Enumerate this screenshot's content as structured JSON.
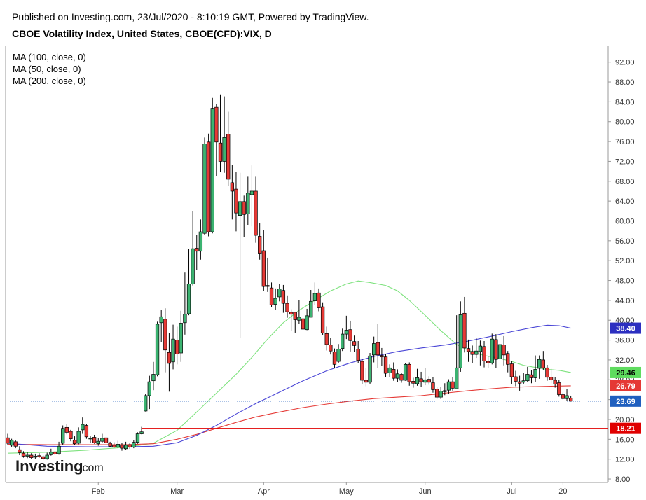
{
  "header": {
    "published": "Published on Investing.com, 23/Jul/2020 - 8:10:19 GMT, Powered by TradingView.",
    "symbol": "CBOE Volatility Index, United States, CBOE(CFD):VIX, D"
  },
  "logo": {
    "main": "Investing",
    "suffix": ".com"
  },
  "colors": {
    "up": "#3cb371",
    "down": "#e53935",
    "ma50": "#7ee27e",
    "ma100": "#e53935",
    "ma200": "#4a46d6",
    "support": "#e00000",
    "current": "#1f5fbf"
  },
  "chart_data": {
    "type": "candlestick",
    "title": "CBOE Volatility Index, United States, CBOE(CFD):VIX, D",
    "ylim": [
      8,
      93
    ],
    "y_ticks": [
      "8.00",
      "12.00",
      "16.00",
      "20.00",
      "24.00",
      "28.00",
      "32.00",
      "36.00",
      "40.00",
      "44.00",
      "48.00",
      "52.00",
      "56.00",
      "60.00",
      "64.00",
      "68.00",
      "72.00",
      "76.00",
      "80.00",
      "84.00",
      "88.00",
      "92.00"
    ],
    "x_labels": [
      {
        "label": "Feb",
        "day": 23
      },
      {
        "label": "Mar",
        "day": 43
      },
      {
        "label": "Apr",
        "day": 65
      },
      {
        "label": "May",
        "day": 86
      },
      {
        "label": "Jun",
        "day": 106
      },
      {
        "label": "Jul",
        "day": 128
      },
      {
        "label": "20",
        "day": 141
      }
    ],
    "legend": [
      "MA (100, close, 0)",
      "MA (50, close, 0)",
      "MA (200, close, 0)"
    ],
    "candles": [
      [
        16.3,
        15.2,
        17.1,
        14.9
      ],
      [
        14.8,
        15.8,
        16.1,
        14.5
      ],
      [
        15.5,
        14.6,
        15.9,
        14.2
      ],
      [
        13.9,
        13.3,
        14.6,
        12.8
      ],
      [
        13.2,
        12.6,
        13.6,
        12.3
      ],
      [
        12.6,
        12.8,
        13.4,
        12.2
      ],
      [
        12.8,
        12.3,
        13.2,
        12.0
      ],
      [
        12.4,
        12.6,
        13.1,
        12.1
      ],
      [
        12.7,
        12.5,
        13.2,
        12.3
      ],
      [
        12.5,
        12.1,
        12.8,
        11.8
      ],
      [
        12.1,
        12.8,
        13.3,
        11.9
      ],
      [
        12.9,
        13.4,
        14.1,
        12.7
      ],
      [
        13.4,
        13.0,
        13.6,
        12.8
      ],
      [
        13.1,
        14.6,
        15.5,
        12.9
      ],
      [
        15.2,
        18.2,
        18.8,
        14.9
      ],
      [
        18.4,
        17.4,
        19.0,
        17.0
      ],
      [
        17.6,
        16.1,
        17.9,
        15.6
      ],
      [
        15.8,
        15.1,
        16.6,
        14.9
      ],
      [
        15.2,
        17.6,
        18.4,
        15.0
      ],
      [
        17.9,
        19.0,
        20.4,
        17.1
      ],
      [
        18.8,
        16.5,
        19.1,
        16.1
      ],
      [
        16.2,
        16.2,
        16.6,
        15.3
      ],
      [
        16.4,
        15.3,
        16.9,
        15.1
      ],
      [
        15.1,
        15.6,
        16.3,
        14.7
      ],
      [
        15.6,
        16.2,
        17.1,
        15.2
      ],
      [
        16.3,
        15.3,
        16.7,
        14.9
      ],
      [
        15.2,
        14.6,
        15.5,
        14.4
      ],
      [
        14.8,
        14.4,
        15.4,
        14.3
      ],
      [
        14.4,
        15.0,
        15.7,
        14.2
      ],
      [
        14.8,
        14.2,
        15.2,
        13.7
      ],
      [
        14.1,
        14.8,
        15.5,
        13.9
      ],
      [
        14.9,
        14.4,
        15.3,
        14.1
      ],
      [
        14.4,
        15.4,
        15.9,
        14.2
      ],
      [
        15.4,
        17.1,
        17.4,
        15.1
      ],
      [
        17.1,
        17.5,
        18.5,
        17.0
      ],
      [
        21.7,
        24.8,
        25.2,
        21.6
      ],
      [
        24.8,
        27.6,
        28.8,
        22.1
      ],
      [
        27.8,
        29.1,
        31.6,
        25.9
      ],
      [
        29.0,
        39.2,
        39.7,
        28.7
      ],
      [
        39.5,
        40.7,
        42.1,
        35.6
      ],
      [
        40.2,
        34.0,
        42.4,
        29.5
      ],
      [
        33.5,
        31.3,
        37.4,
        25.6
      ],
      [
        31.6,
        36.2,
        39.1,
        30.1
      ],
      [
        36.0,
        33.2,
        38.7,
        31.1
      ],
      [
        33.4,
        39.4,
        41.9,
        31.6
      ],
      [
        39.5,
        41.2,
        49.6,
        37.1
      ],
      [
        41.3,
        47.3,
        54.3,
        41.0
      ],
      [
        47.3,
        54.4,
        62.0,
        47.0
      ],
      [
        54.5,
        53.9,
        57.2,
        50.1
      ],
      [
        53.9,
        57.8,
        60.3,
        52.2
      ],
      [
        57.5,
        75.5,
        76.8,
        57.1
      ],
      [
        75.9,
        57.8,
        77.6,
        56.9
      ],
      [
        57.8,
        82.7,
        84.8,
        57.5
      ],
      [
        82.9,
        75.9,
        83.6,
        69.1
      ],
      [
        75.7,
        72.0,
        85.5,
        69.8
      ],
      [
        72.0,
        76.8,
        85.1,
        69.7
      ],
      [
        77.5,
        68.4,
        82.0,
        67.0
      ],
      [
        67.7,
        66.0,
        71.3,
        60.3
      ],
      [
        66.4,
        61.6,
        69.8,
        57.9
      ],
      [
        61.1,
        63.9,
        69.7,
        36.5
      ],
      [
        63.9,
        61.3,
        65.1,
        56.8
      ],
      [
        61.4,
        65.6,
        68.9,
        59.1
      ],
      [
        65.3,
        66.0,
        71.2,
        58.9
      ],
      [
        66.0,
        57.1,
        68.9,
        55.6
      ],
      [
        56.9,
        53.5,
        59.6,
        52.2
      ],
      [
        54.0,
        46.8,
        58.1,
        45.9
      ],
      [
        47.0,
        46.8,
        52.6,
        45.7
      ],
      [
        46.5,
        43.1,
        47.6,
        42.6
      ],
      [
        43.2,
        44.4,
        46.4,
        42.1
      ],
      [
        44.7,
        46.3,
        47.3,
        43.8
      ],
      [
        46.0,
        43.4,
        47.1,
        41.5
      ],
      [
        43.4,
        41.7,
        45.0,
        40.5
      ],
      [
        41.6,
        41.2,
        42.2,
        37.8
      ],
      [
        41.6,
        40.1,
        41.7,
        37.5
      ],
      [
        40.0,
        40.6,
        44.0,
        39.3
      ],
      [
        40.3,
        38.2,
        41.1,
        36.9
      ],
      [
        38.1,
        40.9,
        42.3,
        38.0
      ],
      [
        40.6,
        43.8,
        46.1,
        40.7
      ],
      [
        43.9,
        45.4,
        47.6,
        43.0
      ],
      [
        45.5,
        42.5,
        46.4,
        41.8
      ],
      [
        42.7,
        37.4,
        43.6,
        37.0
      ],
      [
        37.3,
        35.1,
        38.7,
        33.9
      ],
      [
        35.0,
        33.8,
        36.4,
        33.1
      ],
      [
        33.6,
        31.1,
        34.3,
        30.3
      ],
      [
        31.7,
        34.2,
        35.2,
        31.4
      ],
      [
        34.3,
        37.2,
        38.3,
        33.8
      ],
      [
        37.2,
        38.0,
        40.9,
        36.2
      ],
      [
        38.1,
        35.9,
        39.9,
        33.7
      ],
      [
        35.7,
        34.9,
        36.9,
        33.6
      ],
      [
        34.2,
        31.9,
        35.8,
        31.4
      ],
      [
        31.7,
        27.9,
        32.2,
        27.2
      ],
      [
        27.9,
        27.5,
        30.4,
        26.7
      ],
      [
        27.5,
        32.8,
        33.4,
        27.2
      ],
      [
        33.0,
        35.3,
        36.7,
        31.5
      ],
      [
        35.5,
        33.0,
        39.2,
        30.4
      ],
      [
        32.9,
        32.6,
        34.4,
        30.8
      ],
      [
        32.6,
        29.3,
        33.2,
        28.5
      ],
      [
        29.4,
        30.4,
        31.1,
        28.6
      ],
      [
        30.1,
        28.3,
        31.5,
        27.8
      ],
      [
        28.3,
        29.2,
        30.1,
        27.6
      ],
      [
        29.1,
        27.9,
        29.4,
        27.4
      ],
      [
        27.9,
        31.1,
        31.4,
        27.8
      ],
      [
        31.1,
        27.6,
        31.5,
        26.8
      ],
      [
        27.7,
        27.3,
        28.4,
        26.4
      ],
      [
        27.2,
        28.4,
        30.2,
        26.8
      ],
      [
        28.2,
        27.6,
        29.6,
        26.6
      ],
      [
        27.5,
        28.0,
        30.4,
        26.9
      ],
      [
        28.1,
        27.5,
        28.7,
        27.0
      ],
      [
        27.4,
        26.0,
        28.6,
        25.4
      ],
      [
        26.1,
        24.5,
        26.6,
        24.1
      ],
      [
        24.5,
        25.7,
        26.6,
        24.1
      ],
      [
        25.6,
        25.8,
        27.3,
        24.9
      ],
      [
        25.9,
        27.6,
        28.1,
        25.1
      ],
      [
        27.6,
        26.3,
        28.5,
        25.8
      ],
      [
        26.2,
        30.4,
        41.0,
        29.9
      ],
      [
        30.4,
        41.1,
        43.8,
        29.6
      ],
      [
        41.4,
        34.4,
        44.7,
        33.5
      ],
      [
        34.3,
        33.7,
        36.1,
        31.6
      ],
      [
        33.7,
        33.1,
        34.9,
        31.3
      ],
      [
        33.1,
        33.8,
        36.5,
        32.4
      ],
      [
        33.7,
        34.8,
        35.9,
        30.9
      ],
      [
        34.7,
        31.8,
        35.8,
        30.5
      ],
      [
        31.7,
        31.4,
        32.8,
        30.4
      ],
      [
        31.4,
        36.2,
        37.3,
        31.1
      ],
      [
        36.1,
        32.1,
        37.2,
        30.3
      ],
      [
        32.2,
        35.1,
        36.6,
        31.8
      ],
      [
        35.0,
        33.0,
        36.8,
        30.9
      ],
      [
        33.3,
        31.1,
        33.8,
        29.5
      ],
      [
        31.2,
        28.6,
        31.8,
        27.2
      ],
      [
        28.6,
        27.7,
        29.8,
        26.7
      ],
      [
        27.6,
        27.3,
        28.8,
        25.8
      ],
      [
        27.5,
        27.8,
        29.4,
        27.2
      ],
      [
        27.8,
        29.1,
        30.6,
        27.5
      ],
      [
        29.0,
        28.4,
        30.0,
        27.3
      ],
      [
        28.4,
        30.1,
        32.9,
        27.5
      ],
      [
        30.3,
        32.1,
        32.9,
        28.2
      ],
      [
        32.0,
        30.4,
        33.8,
        29.9
      ],
      [
        30.4,
        28.5,
        31.0,
        27.8
      ],
      [
        28.5,
        28.0,
        30.2,
        27.3
      ],
      [
        27.9,
        27.1,
        28.6,
        26.4
      ],
      [
        27.4,
        25.0,
        28.0,
        24.6
      ],
      [
        25.0,
        24.2,
        25.4,
        24.0
      ],
      [
        24.2,
        24.8,
        26.1,
        23.7
      ],
      [
        24.3,
        23.7,
        24.8,
        23.6
      ]
    ],
    "ma50": [
      [
        0,
        13.2
      ],
      [
        10,
        13.4
      ],
      [
        20,
        13.8
      ],
      [
        30,
        14.4
      ],
      [
        37,
        15.2
      ],
      [
        43,
        17.8
      ],
      [
        48,
        21.5
      ],
      [
        53,
        25.3
      ],
      [
        58,
        29.1
      ],
      [
        62,
        32.5
      ],
      [
        66,
        36.2
      ],
      [
        70,
        39.5
      ],
      [
        74,
        42.0
      ],
      [
        78,
        44.0
      ],
      [
        82,
        45.9
      ],
      [
        86,
        47.3
      ],
      [
        89,
        47.9
      ],
      [
        92,
        47.6
      ],
      [
        96,
        47.0
      ],
      [
        99,
        45.9
      ],
      [
        102,
        44.0
      ],
      [
        106,
        41.0
      ],
      [
        110,
        37.9
      ],
      [
        114,
        35.1
      ],
      [
        118,
        33.6
      ],
      [
        121,
        32.9
      ],
      [
        125,
        32.3
      ],
      [
        128,
        31.7
      ],
      [
        131,
        30.9
      ],
      [
        134,
        30.5
      ],
      [
        137,
        30.1
      ],
      [
        140,
        29.9
      ],
      [
        143,
        29.46
      ]
    ],
    "ma100": [
      [
        0,
        15.0
      ],
      [
        10,
        14.9
      ],
      [
        20,
        14.9
      ],
      [
        30,
        14.9
      ],
      [
        37,
        15.1
      ],
      [
        43,
        16.0
      ],
      [
        48,
        17.0
      ],
      [
        53,
        18.2
      ],
      [
        58,
        19.4
      ],
      [
        63,
        20.5
      ],
      [
        69,
        21.5
      ],
      [
        75,
        22.4
      ],
      [
        81,
        23.1
      ],
      [
        87,
        23.7
      ],
      [
        93,
        24.2
      ],
      [
        99,
        24.5
      ],
      [
        105,
        24.8
      ],
      [
        111,
        25.3
      ],
      [
        117,
        25.8
      ],
      [
        123,
        26.2
      ],
      [
        128,
        26.5
      ],
      [
        133,
        26.6
      ],
      [
        138,
        26.7
      ],
      [
        143,
        26.79
      ]
    ],
    "ma200": [
      [
        0,
        15.2
      ],
      [
        10,
        14.6
      ],
      [
        20,
        14.5
      ],
      [
        30,
        14.5
      ],
      [
        37,
        14.6
      ],
      [
        43,
        15.3
      ],
      [
        48,
        16.8
      ],
      [
        53,
        18.8
      ],
      [
        58,
        21.1
      ],
      [
        63,
        23.2
      ],
      [
        69,
        25.5
      ],
      [
        75,
        27.8
      ],
      [
        81,
        29.8
      ],
      [
        87,
        31.4
      ],
      [
        93,
        32.7
      ],
      [
        99,
        33.7
      ],
      [
        105,
        34.4
      ],
      [
        111,
        35.0
      ],
      [
        117,
        35.8
      ],
      [
        123,
        36.8
      ],
      [
        128,
        37.7
      ],
      [
        133,
        38.5
      ],
      [
        137,
        39.0
      ],
      [
        140,
        38.9
      ],
      [
        143,
        38.4
      ]
    ],
    "support_level": 18.21,
    "support_start_day": 34,
    "last_price": 23.69,
    "price_tags": [
      {
        "label": "38.40",
        "value": 38.4,
        "color": "#2c2fc0"
      },
      {
        "label": "29.46",
        "value": 29.46,
        "color": "#5fdc5f"
      },
      {
        "label": "26.79",
        "value": 26.79,
        "color": "#e53935"
      },
      {
        "label": "23.69",
        "value": 23.69,
        "color": "#1f5fbf"
      },
      {
        "label": "18.21",
        "value": 18.21,
        "color": "#e00000"
      }
    ]
  }
}
